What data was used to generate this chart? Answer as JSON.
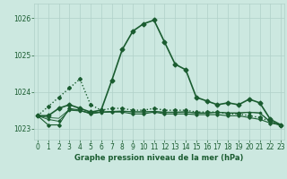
{
  "title": "Graphe pression niveau de la mer (hPa)",
  "bg_color": "#cce8e0",
  "grid_color": "#b0d0c8",
  "line_color": "#1a5c30",
  "ylim": [
    1022.7,
    1026.4
  ],
  "xlim": [
    -0.3,
    23.3
  ],
  "yticks": [
    1023,
    1024,
    1025,
    1026
  ],
  "xticks": [
    0,
    1,
    2,
    3,
    4,
    5,
    6,
    7,
    8,
    9,
    10,
    11,
    12,
    13,
    14,
    15,
    16,
    17,
    18,
    19,
    20,
    21,
    22,
    23
  ],
  "series_main": {
    "x": [
      0,
      1,
      2,
      3,
      4,
      5,
      6,
      7,
      8,
      9,
      10,
      11,
      12,
      13,
      14,
      15,
      16,
      17,
      18,
      19,
      20,
      21,
      22,
      23
    ],
    "y": [
      1023.35,
      1023.35,
      1023.55,
      1023.65,
      1023.55,
      1023.45,
      1023.5,
      1024.3,
      1025.15,
      1025.65,
      1025.85,
      1025.95,
      1025.35,
      1024.75,
      1024.6,
      1023.85,
      1023.75,
      1023.65,
      1023.7,
      1023.65,
      1023.8,
      1023.7,
      1023.25,
      1023.1
    ],
    "style": "-",
    "marker": "D",
    "markersize": 2.5,
    "linewidth": 1.2
  },
  "series_dotted": {
    "x": [
      0,
      1,
      2,
      3,
      4,
      5,
      6,
      7,
      8,
      9,
      10,
      11,
      12,
      13,
      14,
      15,
      16,
      17,
      18,
      19,
      20,
      21,
      22,
      23
    ],
    "y": [
      1023.35,
      1023.6,
      1023.85,
      1024.1,
      1024.35,
      1023.65,
      1023.5,
      1023.55,
      1023.55,
      1023.5,
      1023.5,
      1023.55,
      1023.5,
      1023.5,
      1023.5,
      1023.45,
      1023.45,
      1023.45,
      1023.4,
      1023.4,
      1023.35,
      1023.3,
      1023.2,
      1023.1
    ],
    "style": ":",
    "marker": "D",
    "markersize": 2.0,
    "linewidth": 1.0
  },
  "series_flat1": {
    "x": [
      0,
      1,
      2,
      3,
      4,
      5,
      6,
      7,
      8,
      9,
      10,
      11,
      12,
      13,
      14,
      15,
      16,
      17,
      18,
      19,
      20,
      21,
      22,
      23
    ],
    "y": [
      1023.35,
      1023.1,
      1023.1,
      1023.55,
      1023.5,
      1023.4,
      1023.45,
      1023.45,
      1023.45,
      1023.4,
      1023.4,
      1023.45,
      1023.4,
      1023.4,
      1023.4,
      1023.38,
      1023.38,
      1023.38,
      1023.35,
      1023.35,
      1023.3,
      1023.25,
      1023.15,
      1023.1
    ],
    "style": "-",
    "marker": "D",
    "markersize": 1.8,
    "linewidth": 0.8
  },
  "series_flat2": {
    "x": [
      0,
      1,
      2,
      3,
      4,
      5,
      6,
      7,
      8,
      9,
      10,
      11,
      12,
      13,
      14,
      15,
      16,
      17,
      18,
      19,
      20,
      21,
      22,
      23
    ],
    "y": [
      1023.35,
      1023.25,
      1023.2,
      1023.5,
      1023.48,
      1023.42,
      1023.44,
      1023.46,
      1023.47,
      1023.45,
      1023.45,
      1023.46,
      1023.44,
      1023.44,
      1023.45,
      1023.42,
      1023.42,
      1023.44,
      1023.42,
      1023.42,
      1023.44,
      1023.42,
      1023.18,
      1023.08
    ],
    "style": "-",
    "marker": "D",
    "markersize": 1.4,
    "linewidth": 0.7
  },
  "series_flat3": {
    "x": [
      0,
      1,
      2,
      3,
      4,
      5,
      6,
      7,
      8,
      9,
      10,
      11,
      12,
      13,
      14,
      15,
      16,
      17,
      18,
      19,
      20,
      21,
      22,
      23
    ],
    "y": [
      1023.35,
      1023.3,
      1023.28,
      1023.52,
      1023.49,
      1023.43,
      1023.45,
      1023.47,
      1023.48,
      1023.46,
      1023.46,
      1023.47,
      1023.45,
      1023.45,
      1023.46,
      1023.43,
      1023.43,
      1023.45,
      1023.43,
      1023.43,
      1023.45,
      1023.43,
      1023.19,
      1023.09
    ],
    "style": "-",
    "marker": null,
    "markersize": 0,
    "linewidth": 0.6
  }
}
